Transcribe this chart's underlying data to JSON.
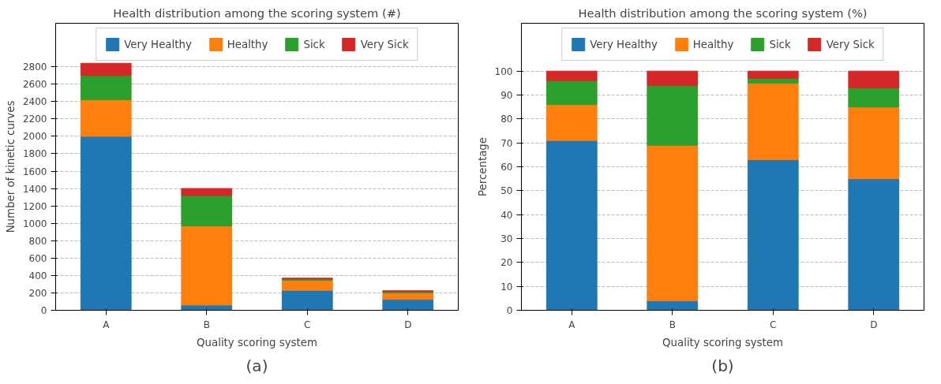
{
  "chart_data": [
    {
      "type": "bar",
      "title": "Health distribution among the scoring system (#)",
      "xlabel": "Quality scoring system",
      "ylabel": "Number of kinetic curves",
      "categories": [
        "A",
        "B",
        "C",
        "D"
      ],
      "stacked": true,
      "series": [
        {
          "name": "Very Healthy",
          "color": "#1f77b4",
          "values": [
            2000,
            60,
            230,
            125
          ]
        },
        {
          "name": "Healthy",
          "color": "#ff7f0e",
          "values": [
            420,
            910,
            115,
            75
          ]
        },
        {
          "name": "Sick",
          "color": "#2ca02c",
          "values": [
            280,
            350,
            15,
            15
          ]
        },
        {
          "name": "Very Sick",
          "color": "#d62728",
          "values": [
            140,
            80,
            10,
            10
          ]
        }
      ],
      "ylim": [
        0,
        3300
      ],
      "yticks": [
        0,
        200,
        400,
        600,
        800,
        1000,
        1200,
        1400,
        1600,
        1800,
        2000,
        2200,
        2400,
        2600,
        2800
      ],
      "grid": "y",
      "legend": "top",
      "annotations": [
        "(a)"
      ]
    },
    {
      "type": "bar",
      "title": "Health distribution among the scoring system (%)",
      "xlabel": "Quality scoring system",
      "ylabel": "Percentage",
      "categories": [
        "A",
        "B",
        "C",
        "D"
      ],
      "stacked": true,
      "series": [
        {
          "name": "Very Healthy",
          "color": "#1f77b4",
          "values": [
            71,
            4,
            63,
            55
          ]
        },
        {
          "name": "Healthy",
          "color": "#ff7f0e",
          "values": [
            15,
            65,
            32,
            30
          ]
        },
        {
          "name": "Sick",
          "color": "#2ca02c",
          "values": [
            10,
            25,
            2,
            8
          ]
        },
        {
          "name": "Very Sick",
          "color": "#d62728",
          "values": [
            4,
            6,
            3,
            7
          ]
        }
      ],
      "ylim": [
        0,
        120
      ],
      "yticks": [
        0,
        10,
        20,
        30,
        40,
        50,
        60,
        70,
        80,
        90,
        100
      ],
      "grid": "y",
      "legend": "top",
      "annotations": [
        "(b)"
      ]
    }
  ]
}
